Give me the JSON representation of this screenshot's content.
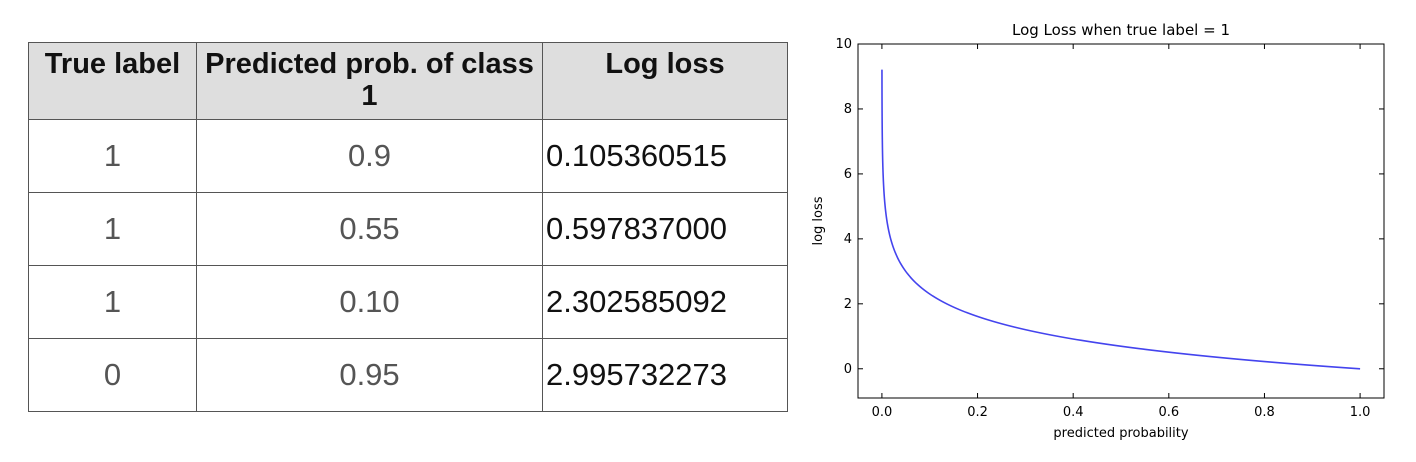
{
  "table": {
    "headers": [
      "True label",
      "Predicted prob. of class 1",
      "Log loss"
    ],
    "rows": [
      [
        "1",
        "0.9",
        "0.105360515"
      ],
      [
        "1",
        "0.55",
        "0.597837000"
      ],
      [
        "1",
        "0.10",
        "2.302585092"
      ],
      [
        "0",
        "0.95",
        "2.995732273"
      ]
    ]
  },
  "chart_data": {
    "type": "line",
    "title": "Log Loss when true label = 1",
    "xlabel": "predicted probability",
    "ylabel": "log loss",
    "xlim": [
      -0.05,
      1.05
    ],
    "ylim": [
      -0.9,
      10
    ],
    "xticks": [
      "0.0",
      "0.2",
      "0.4",
      "0.6",
      "0.8",
      "1.0"
    ],
    "yticks": [
      "0",
      "2",
      "4",
      "6",
      "8",
      "10"
    ],
    "grid": false,
    "series": [
      {
        "color": "#4444ee",
        "function": "-ln(p)",
        "x_range": [
          0.0001,
          1.0
        ]
      }
    ]
  }
}
